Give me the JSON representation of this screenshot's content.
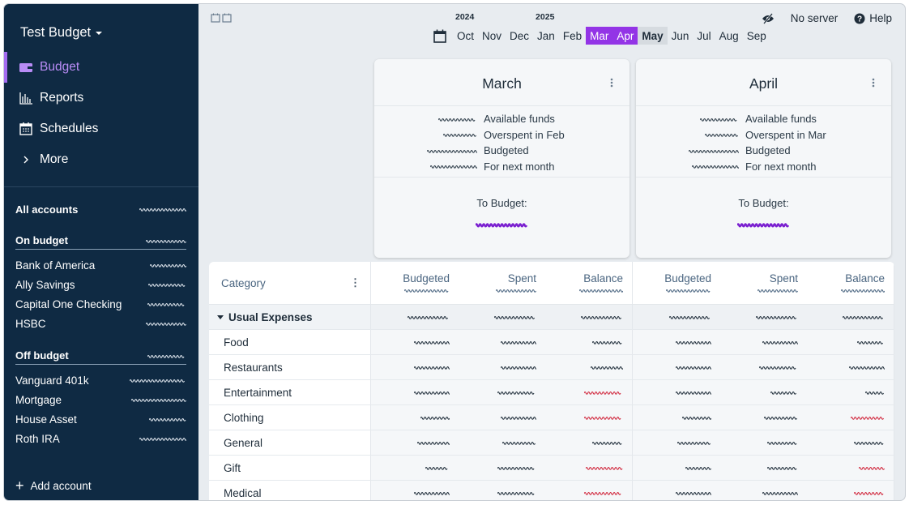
{
  "sidebar": {
    "budget_name": "Test Budget",
    "nav": [
      {
        "label": "Budget",
        "icon": "wallet-icon",
        "active": true
      },
      {
        "label": "Reports",
        "icon": "bar-chart-icon"
      },
      {
        "label": "Schedules",
        "icon": "calendar-icon"
      },
      {
        "label": "More",
        "icon": "chevron-right-icon"
      }
    ],
    "groups": [
      {
        "label": "All accounts",
        "accounts": []
      },
      {
        "label": "On budget",
        "accounts": [
          "Bank of America",
          "Ally Savings",
          "Capital One Checking",
          "HSBC"
        ]
      },
      {
        "label": "Off budget",
        "accounts": [
          "Vanguard 401k",
          "Mortgage",
          "House Asset",
          "Roth IRA"
        ]
      }
    ],
    "add_account": "Add account"
  },
  "header": {
    "privacy_icon": "eye-slash-icon",
    "server": "No server",
    "help": "Help"
  },
  "month_picker": {
    "months": [
      {
        "label": "Oct",
        "year": "2024"
      },
      {
        "label": "Nov"
      },
      {
        "label": "Dec"
      },
      {
        "label": "Jan",
        "year": "2025"
      },
      {
        "label": "Feb"
      },
      {
        "label": "Mar",
        "selected": true
      },
      {
        "label": "Apr",
        "selected": true
      },
      {
        "label": "May",
        "current": true
      },
      {
        "label": "Jun"
      },
      {
        "label": "Jul"
      },
      {
        "label": "Aug"
      },
      {
        "label": "Sep"
      }
    ],
    "accent": "#9334e6"
  },
  "cards": [
    {
      "title": "March",
      "summary": [
        "Available funds",
        "Overspent in Feb",
        "Budgeted",
        "For next month"
      ],
      "to_budget_label": "To Budget:"
    },
    {
      "title": "April",
      "summary": [
        "Available funds",
        "Overspent in Mar",
        "Budgeted",
        "For next month"
      ],
      "to_budget_label": "To Budget:"
    }
  ],
  "table": {
    "category_header": "Category",
    "columns": [
      "Budgeted",
      "Spent",
      "Balance"
    ],
    "group": "Usual Expenses",
    "rows": [
      {
        "name": "Food",
        "negative": [
          false,
          false
        ]
      },
      {
        "name": "Restaurants",
        "negative": [
          false,
          false
        ]
      },
      {
        "name": "Entertainment",
        "negative": [
          true,
          false
        ]
      },
      {
        "name": "Clothing",
        "negative": [
          true,
          true
        ]
      },
      {
        "name": "General",
        "negative": [
          false,
          false
        ]
      },
      {
        "name": "Gift",
        "negative": [
          true,
          true
        ]
      },
      {
        "name": "Medical",
        "negative": [
          true,
          true
        ]
      }
    ],
    "negative_color": "#d0243a",
    "privacy_mode": true
  }
}
